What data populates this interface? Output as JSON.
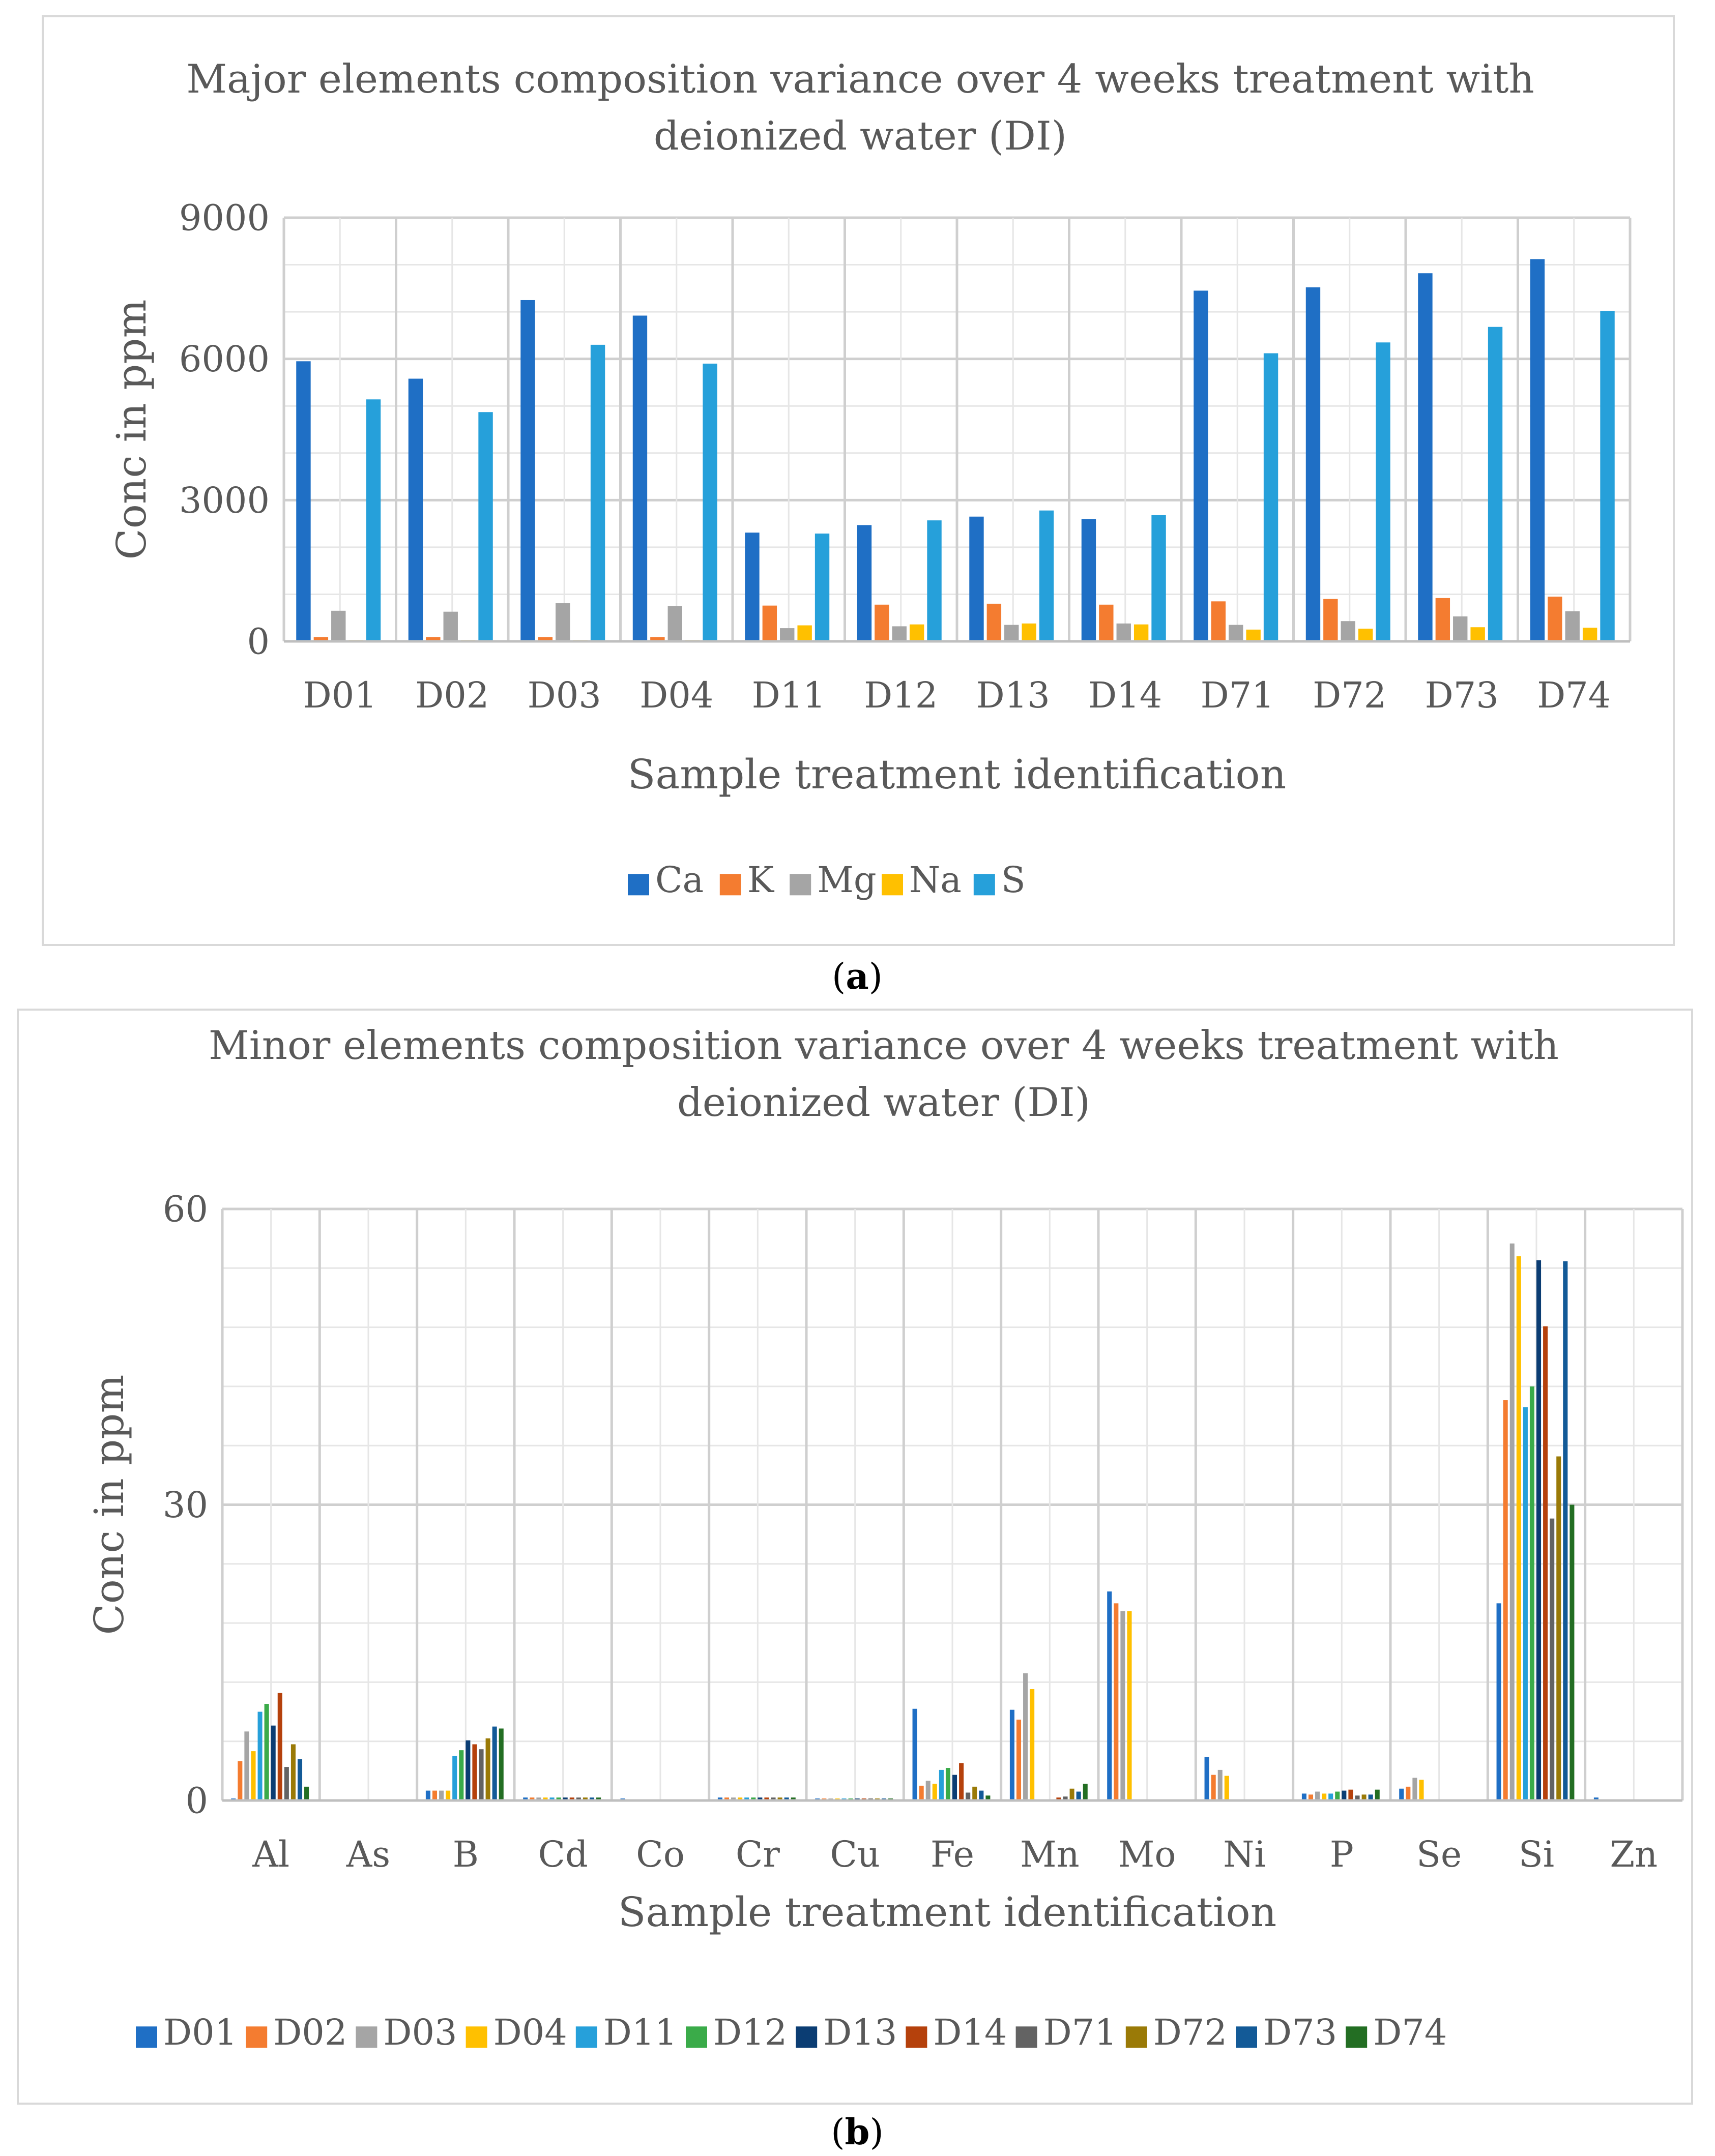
{
  "chart_data": [
    {
      "type": "bar",
      "title": "Major elements composition variance over 4 weeks treatment with deionized water (DI)",
      "xlabel": "Sample treatment identification",
      "ylabel": "Conc in ppm",
      "ylim": [
        0,
        9000
      ],
      "yticks": [
        0,
        3000,
        6000,
        9000
      ],
      "grid": true,
      "legend_position": "bottom",
      "categories": [
        "D01",
        "D02",
        "D03",
        "D04",
        "D11",
        "D12",
        "D13",
        "D14",
        "D71",
        "D72",
        "D73",
        "D74"
      ],
      "series": [
        {
          "name": "Ca",
          "color": "#1f6fc5",
          "values": [
            5950,
            5580,
            7250,
            6920,
            2310,
            2470,
            2650,
            2600,
            7450,
            7520,
            7820,
            8120
          ]
        },
        {
          "name": "K",
          "color": "#f47c30",
          "values": [
            90,
            90,
            90,
            90,
            760,
            780,
            800,
            780,
            850,
            900,
            920,
            950
          ]
        },
        {
          "name": "Mg",
          "color": "#a5a5a5",
          "values": [
            650,
            630,
            810,
            750,
            280,
            320,
            350,
            380,
            350,
            430,
            530,
            640
          ]
        },
        {
          "name": "Na",
          "color": "#ffc000",
          "values": [
            30,
            30,
            30,
            30,
            340,
            360,
            380,
            360,
            250,
            270,
            300,
            290
          ]
        },
        {
          "name": "S",
          "color": "#26a0da",
          "values": [
            5140,
            4870,
            6300,
            5900,
            2290,
            2570,
            2780,
            2680,
            6120,
            6350,
            6680,
            7020
          ]
        }
      ]
    },
    {
      "type": "bar",
      "title": "Minor elements composition variance over 4 weeks treatment with deionized water (DI)",
      "xlabel": "Sample treatment identification",
      "ylabel": "Conc in ppm",
      "ylim": [
        0,
        60
      ],
      "yticks": [
        0,
        30,
        60
      ],
      "grid": true,
      "legend_position": "bottom",
      "categories": [
        "Al",
        "As",
        "B",
        "Cd",
        "Co",
        "Cr",
        "Cu",
        "Fe",
        "Mn",
        "Mo",
        "Ni",
        "P",
        "Se",
        "Si",
        "Zn"
      ],
      "series": [
        {
          "name": "D01",
          "color": "#1f6fc5",
          "values": [
            0.2,
            0.1,
            1.0,
            0.3,
            0.2,
            0.3,
            0.2,
            9.3,
            9.2,
            21.2,
            4.4,
            0.7,
            1.2,
            20.0,
            0.3
          ]
        },
        {
          "name": "D02",
          "color": "#f47c30",
          "values": [
            4.0,
            0.1,
            1.0,
            0.3,
            0.1,
            0.3,
            0.2,
            1.5,
            8.2,
            20.0,
            2.6,
            0.6,
            1.4,
            40.6,
            0.0
          ]
        },
        {
          "name": "D03",
          "color": "#a5a5a5",
          "values": [
            7.0,
            0.1,
            1.0,
            0.3,
            0.1,
            0.3,
            0.2,
            2.0,
            12.9,
            19.2,
            3.1,
            0.9,
            2.3,
            56.5,
            0.1
          ]
        },
        {
          "name": "D04",
          "color": "#ffc000",
          "values": [
            5.0,
            0.1,
            1.0,
            0.3,
            0.0,
            0.3,
            0.2,
            1.7,
            11.3,
            19.2,
            2.5,
            0.7,
            2.1,
            55.2,
            0.0
          ]
        },
        {
          "name": "D11",
          "color": "#26a0da",
          "values": [
            9.0,
            0.1,
            4.5,
            0.3,
            0.0,
            0.3,
            0.2,
            3.1,
            0.0,
            0.0,
            0.0,
            0.7,
            0.0,
            39.9,
            0.0
          ]
        },
        {
          "name": "D12",
          "color": "#3aab49",
          "values": [
            9.8,
            0.1,
            5.1,
            0.3,
            0.0,
            0.3,
            0.2,
            3.3,
            0.0,
            0.0,
            0.0,
            0.9,
            0.0,
            42.0,
            0.0
          ]
        },
        {
          "name": "D13",
          "color": "#0b3d73",
          "values": [
            7.6,
            0.1,
            6.1,
            0.3,
            0.0,
            0.3,
            0.2,
            2.6,
            0.0,
            0.0,
            0.0,
            1.0,
            0.0,
            54.8,
            0.0
          ]
        },
        {
          "name": "D14",
          "color": "#b5410c",
          "values": [
            10.9,
            0.1,
            5.7,
            0.3,
            0.0,
            0.3,
            0.2,
            3.8,
            0.3,
            0.0,
            0.1,
            1.1,
            0.0,
            48.1,
            0.0
          ]
        },
        {
          "name": "D71",
          "color": "#636363",
          "values": [
            3.4,
            0.1,
            5.2,
            0.3,
            0.0,
            0.3,
            0.2,
            0.8,
            0.4,
            0.0,
            0.1,
            0.5,
            0.1,
            28.6,
            0.0
          ]
        },
        {
          "name": "D72",
          "color": "#9a7a07",
          "values": [
            5.7,
            0.1,
            6.3,
            0.3,
            0.0,
            0.3,
            0.2,
            1.4,
            1.2,
            0.0,
            0.1,
            0.6,
            0.1,
            34.9,
            0.0
          ]
        },
        {
          "name": "D73",
          "color": "#135a97",
          "values": [
            4.2,
            0.1,
            7.5,
            0.3,
            0.0,
            0.3,
            0.2,
            1.0,
            0.9,
            0.0,
            0.1,
            0.6,
            0.0,
            54.7,
            0.0
          ]
        },
        {
          "name": "D74",
          "color": "#236e23",
          "values": [
            1.4,
            0.1,
            7.3,
            0.3,
            0.0,
            0.3,
            0.2,
            0.5,
            1.7,
            0.0,
            0.1,
            1.1,
            0.0,
            30.0,
            0.0
          ]
        }
      ]
    }
  ],
  "captions": {
    "a": {
      "open": "(",
      "letter": "a",
      "close": ")"
    },
    "b": {
      "open": "(",
      "letter": "b",
      "close": ")"
    }
  }
}
